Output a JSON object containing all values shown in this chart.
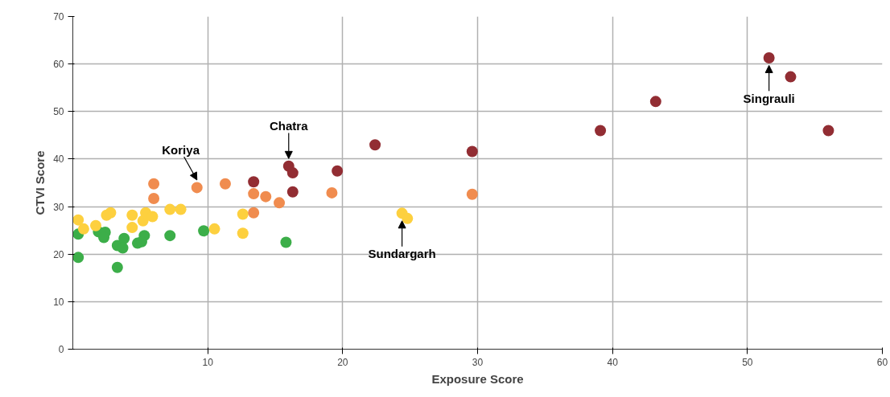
{
  "chart_data": {
    "type": "scatter",
    "xlabel": "Exposure Score",
    "ylabel": "CTVI Score",
    "xlim": [
      0,
      60
    ],
    "ylim": [
      0,
      70
    ],
    "xticks": [
      10,
      20,
      30,
      40,
      50,
      60
    ],
    "yticks": [
      0,
      10,
      20,
      30,
      40,
      50,
      60,
      70
    ],
    "grid": true,
    "marker": "circle",
    "series": [
      {
        "color": "#3cae49",
        "x": [
          0.4,
          0.4,
          1.9,
          2.4,
          2.3,
          3.3,
          3.8,
          3.7,
          3.3,
          4.8,
          5.3,
          5.1,
          7.2,
          9.7,
          15.8
        ],
        "values": [
          24.2,
          19.3,
          24.7,
          24.6,
          23.5,
          21.8,
          23.3,
          21.3,
          17.2,
          22.3,
          23.9,
          22.6,
          23.9,
          24.9,
          22.5
        ]
      },
      {
        "color": "#fdd03f",
        "x": [
          0.4,
          0.8,
          1.7,
          2.5,
          2.8,
          4.4,
          4.4,
          5.2,
          5.4,
          5.9,
          7.2,
          8.0,
          10.5,
          12.6,
          12.6,
          24.4,
          24.8
        ],
        "values": [
          27.2,
          25.3,
          26.0,
          28.2,
          28.7,
          28.2,
          25.6,
          27.0,
          28.7,
          27.9,
          29.4,
          29.4,
          25.3,
          28.4,
          24.4,
          28.6,
          27.5
        ]
      },
      {
        "color": "#f08c4f",
        "x": [
          6.0,
          6.0,
          9.2,
          11.3,
          13.4,
          14.3,
          15.3,
          13.4,
          19.2,
          29.6
        ],
        "values": [
          34.8,
          31.7,
          34.0,
          34.8,
          32.7,
          32.1,
          30.8,
          28.7,
          32.9,
          32.6
        ]
      },
      {
        "color": "#922d33",
        "x": [
          13.4,
          16.0,
          16.3,
          16.3,
          19.6,
          22.4,
          29.6,
          39.1,
          43.2,
          51.6,
          53.2,
          56.0
        ],
        "values": [
          35.2,
          38.5,
          37.1,
          33.1,
          37.5,
          43.0,
          41.6,
          46.0,
          52.1,
          61.3,
          57.3,
          46.0
        ]
      }
    ],
    "annotations": [
      {
        "text": "Koriya",
        "x": 9.2,
        "y": 34.0
      },
      {
        "text": "Chatra",
        "x": 16.0,
        "y": 38.5
      },
      {
        "text": "Sundargarh",
        "x": 24.4,
        "y": 28.6
      },
      {
        "text": "Singrauli",
        "x": 51.6,
        "y": 61.3
      }
    ]
  }
}
